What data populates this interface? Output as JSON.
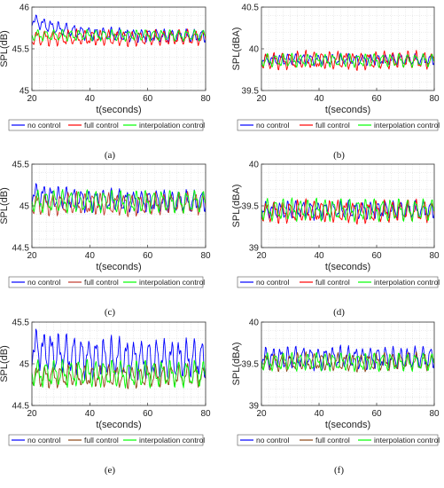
{
  "chart_data": [
    {
      "type": "line",
      "panel": "(a)",
      "ylabel": "SPL(dB)",
      "xlabel": "t(seconds)",
      "xlim": [
        20,
        80
      ],
      "ylim": [
        45,
        46
      ],
      "xticks": [
        "20",
        "40",
        "60",
        "80"
      ],
      "yticks": [
        "45",
        "45.5",
        "46"
      ],
      "grid": true,
      "legend": "bottom",
      "series": [
        {
          "name": "no control",
          "color": "#0000ff",
          "base": 45.65,
          "amplitude": 0.06,
          "trend_start": 45.85,
          "trend_end": 45.65
        },
        {
          "name": "full control",
          "color": "#ff0000",
          "base": 45.63,
          "amplitude": 0.07
        },
        {
          "name": "interpolation control",
          "color": "#00ff00",
          "base": 45.66,
          "amplitude": 0.05
        }
      ]
    },
    {
      "type": "line",
      "panel": "(b)",
      "ylabel": "SPL(dBA)",
      "xlabel": "t(seconds)",
      "xlim": [
        20,
        80
      ],
      "ylim": [
        39.5,
        40.5
      ],
      "xticks": [
        "20",
        "40",
        "60",
        "80"
      ],
      "yticks": [
        "39.5",
        "40",
        "40.5"
      ],
      "grid": true,
      "legend": "bottom",
      "series": [
        {
          "name": "no control",
          "color": "#0000ff",
          "base": 39.87,
          "amplitude": 0.05
        },
        {
          "name": "full control",
          "color": "#ff0000",
          "base": 39.86,
          "amplitude": 0.08
        },
        {
          "name": "interpolation control",
          "color": "#00ff00",
          "base": 39.86,
          "amplitude": 0.06
        }
      ]
    },
    {
      "type": "line",
      "panel": "(c)",
      "ylabel": "SPL(dB)",
      "xlabel": "t(seconds)",
      "xlim": [
        20,
        80
      ],
      "ylim": [
        44.5,
        45.5
      ],
      "xticks": [
        "20",
        "40",
        "60",
        "80"
      ],
      "yticks": [
        "44.5",
        "45",
        "45.5"
      ],
      "grid": true,
      "legend": "bottom",
      "series": [
        {
          "name": "no control",
          "color": "#0000ff",
          "base": 45.08,
          "amplitude": 0.1,
          "trend_start": 45.15,
          "trend_end": 45.05
        },
        {
          "name": "full control",
          "color": "#c0392b",
          "base": 45.02,
          "amplitude": 0.1
        },
        {
          "name": "interpolation control",
          "color": "#00ff00",
          "base": 45.05,
          "amplitude": 0.1
        }
      ]
    },
    {
      "type": "line",
      "panel": "(d)",
      "ylabel": "SPL(dBA)",
      "xlabel": "t(seconds)",
      "xlim": [
        20,
        80
      ],
      "ylim": [
        39,
        40
      ],
      "xticks": [
        "20",
        "40",
        "60",
        "80"
      ],
      "yticks": [
        "39",
        "39.5",
        "40"
      ],
      "grid": true,
      "legend": "bottom",
      "series": [
        {
          "name": "no control",
          "color": "#0000ff",
          "base": 39.45,
          "amplitude": 0.08
        },
        {
          "name": "full control",
          "color": "#ff0000",
          "base": 39.43,
          "amplitude": 0.1
        },
        {
          "name": "interpolation control",
          "color": "#00ff00",
          "base": 39.45,
          "amplitude": 0.1
        }
      ]
    },
    {
      "type": "line",
      "panel": "(e)",
      "ylabel": "SPL(dB)",
      "xlabel": "t(seconds)",
      "xlim": [
        20,
        80
      ],
      "ylim": [
        44.5,
        45.5
      ],
      "xticks": [
        "20",
        "40",
        "60",
        "80"
      ],
      "yticks": [
        "44.5",
        "45",
        "45.5"
      ],
      "grid": true,
      "legend": "bottom",
      "series": [
        {
          "name": "no control",
          "color": "#0000ff",
          "base": 45.1,
          "amplitude": 0.18,
          "trend_start": 45.2,
          "trend_end": 45.05
        },
        {
          "name": "full control",
          "color": "#8b4513",
          "base": 44.85,
          "amplitude": 0.1
        },
        {
          "name": "interpolation control",
          "color": "#00ff00",
          "base": 44.88,
          "amplitude": 0.12
        }
      ]
    },
    {
      "type": "line",
      "panel": "(f)",
      "ylabel": "SPL(dBA)",
      "xlabel": "t(seconds)",
      "xlim": [
        20,
        80
      ],
      "ylim": [
        39,
        40
      ],
      "xticks": [
        "20",
        "40",
        "60",
        "80"
      ],
      "yticks": [
        "39",
        "39.5",
        "40"
      ],
      "grid": true,
      "legend": "bottom",
      "series": [
        {
          "name": "no control",
          "color": "#0000ff",
          "base": 39.57,
          "amplitude": 0.1
        },
        {
          "name": "full control",
          "color": "#8b4513",
          "base": 39.52,
          "amplitude": 0.08
        },
        {
          "name": "interpolation control",
          "color": "#00ff00",
          "base": 39.52,
          "amplitude": 0.08
        }
      ]
    }
  ]
}
